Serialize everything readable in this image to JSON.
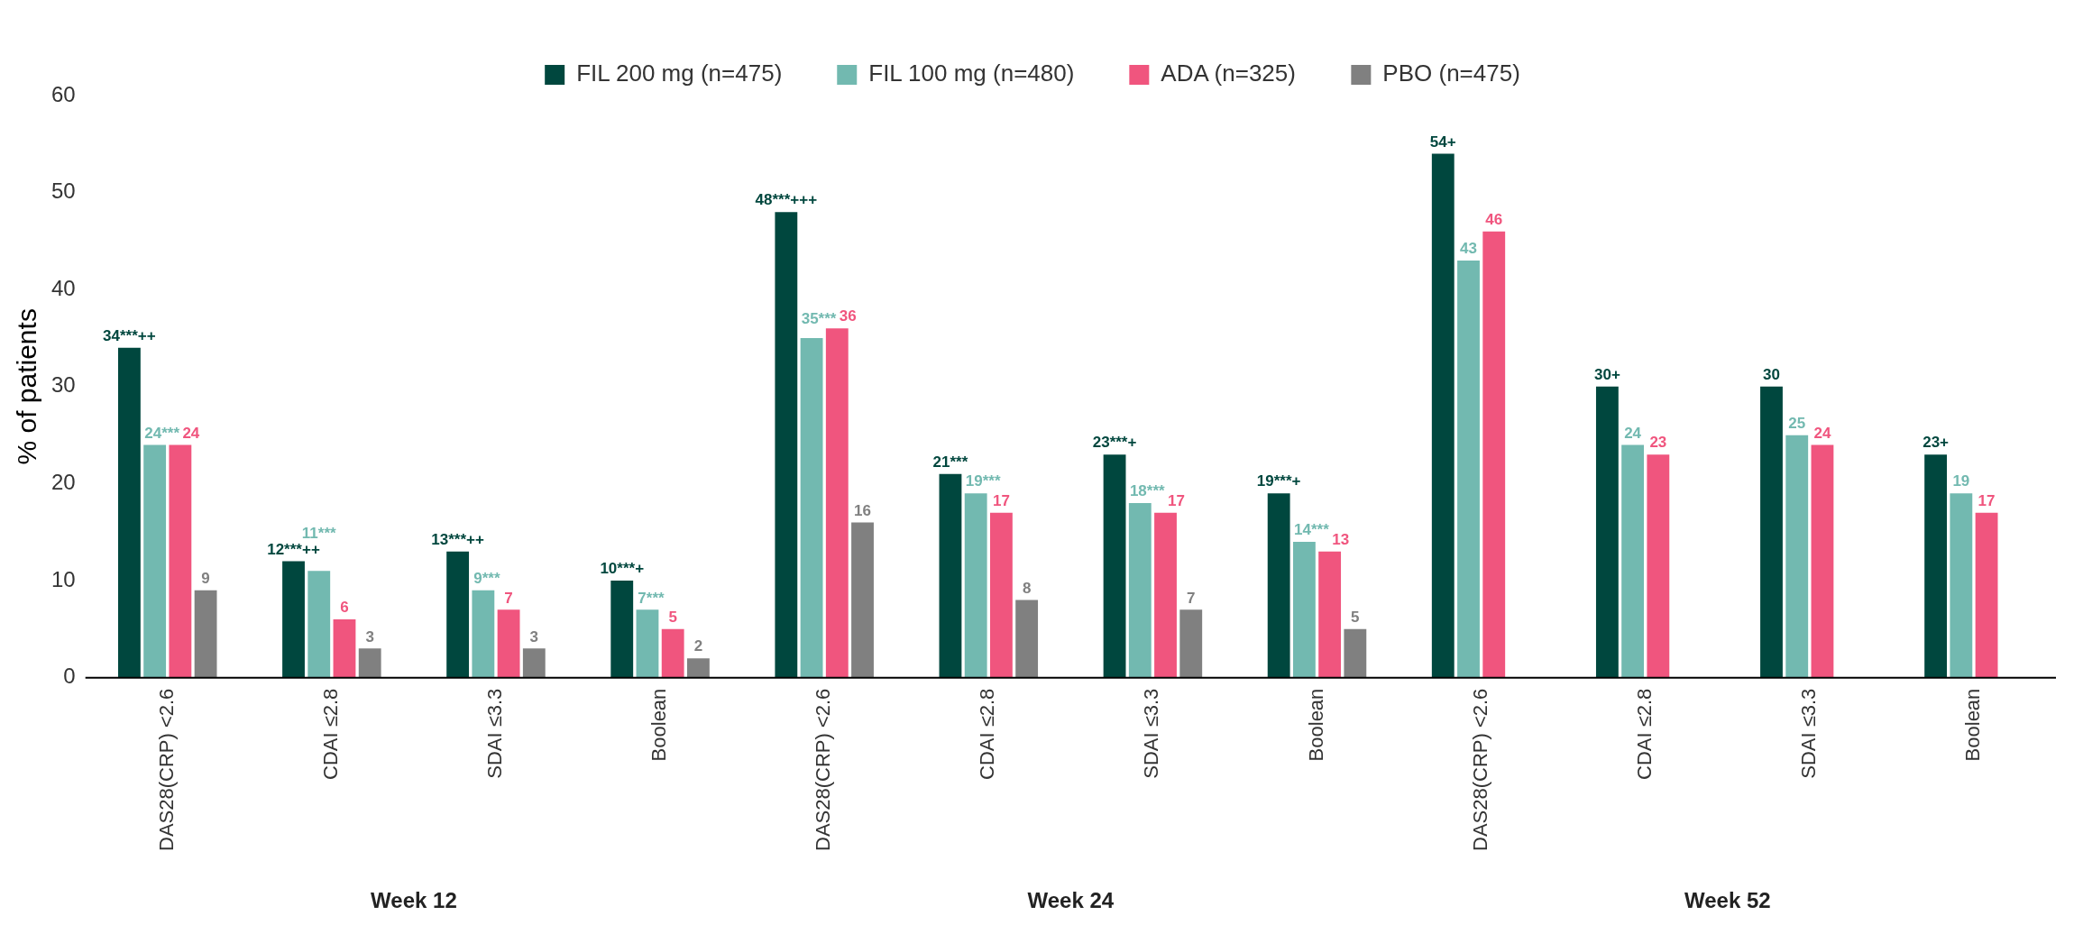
{
  "chart_data": {
    "type": "bar",
    "ylabel": "% of patients",
    "categories": [
      "DAS28(CRP) <2.6",
      "CDAI ≤2.8",
      "SDAI ≤3.3",
      "Boolean",
      "DAS28(CRP) <2.6",
      "CDAI ≤2.8",
      "SDAI ≤3.3",
      "Boolean",
      "DAS28(CRP) <2.6",
      "CDAI ≤2.8",
      "SDAI ≤3.3",
      "Boolean"
    ],
    "series": [
      {
        "name": "FIL 200 mg (n=475)",
        "color": "#00473e",
        "values": [
          34,
          12,
          13,
          10,
          48,
          21,
          23,
          19,
          54,
          30,
          30,
          23
        ],
        "value_labels": [
          "34***++",
          "12***++",
          "13***++",
          "10***+",
          "48***+++",
          "21***",
          "23***+",
          "19***+",
          "54+",
          "30+",
          "30",
          "23+"
        ]
      },
      {
        "name": "FIL 100 mg (n=480)",
        "color": "#72b9b0",
        "values": [
          24,
          11,
          9,
          7,
          35,
          19,
          18,
          14,
          43,
          24,
          25,
          19
        ],
        "value_labels": [
          "24***",
          "11***",
          "9***",
          "7***",
          "35***",
          "19***",
          "18***",
          "14***",
          "43",
          "24",
          "25",
          "19"
        ]
      },
      {
        "name": "ADA (n=325)",
        "color": "#f0557e",
        "values": [
          24,
          6,
          7,
          5,
          36,
          17,
          17,
          13,
          46,
          23,
          24,
          17
        ],
        "value_labels": [
          "24",
          "6",
          "7",
          "5",
          "36",
          "17",
          "17",
          "13",
          "46",
          "23",
          "24",
          "17"
        ]
      },
      {
        "name": "PBO (n=475)",
        "color": "#808080",
        "values": [
          9,
          3,
          3,
          2,
          16,
          8,
          7,
          5,
          null,
          null,
          null,
          null
        ],
        "value_labels": [
          "9",
          "3",
          "3",
          "2",
          "16",
          "8",
          "7",
          "5",
          null,
          null,
          null,
          null
        ]
      }
    ],
    "annotations": [
      "Week 12",
      "Week 24",
      "Week 52"
    ],
    "ylim": [
      0,
      60
    ],
    "yticks": [
      0,
      10,
      20,
      30,
      40,
      50,
      60
    ],
    "grid": false,
    "legend": "top"
  }
}
